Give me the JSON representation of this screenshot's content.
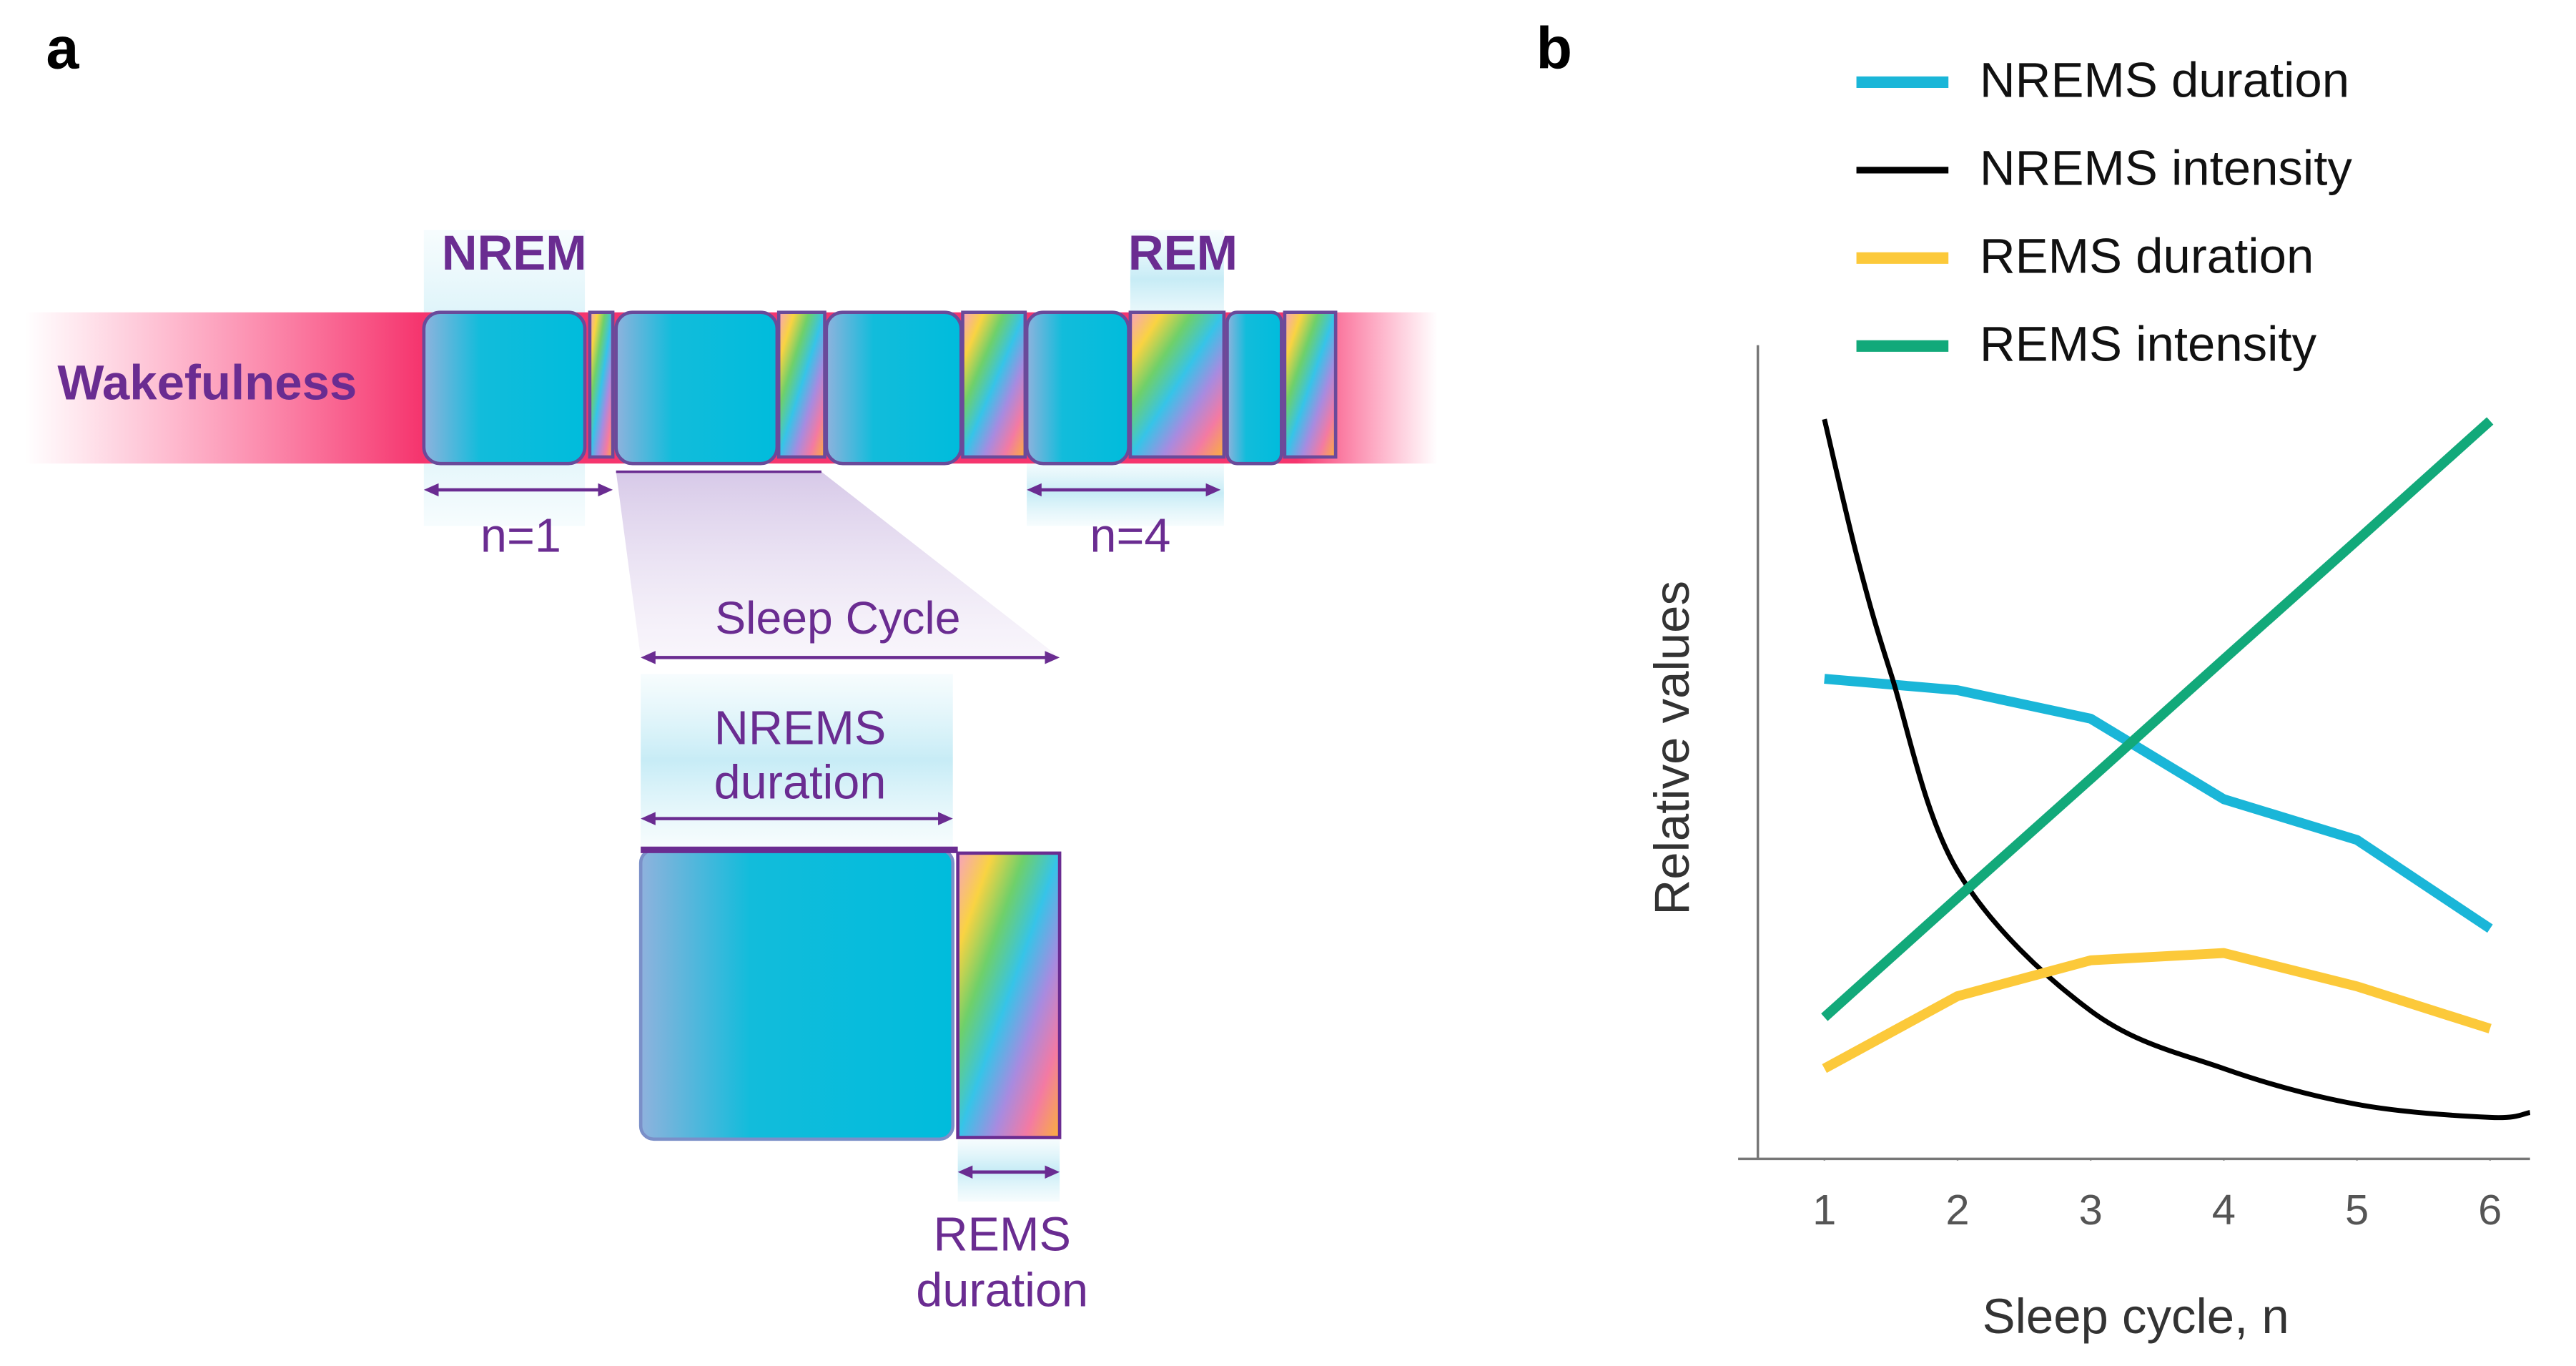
{
  "diagram": {
    "panel_labels": [
      "a",
      "b"
    ],
    "wake": "Wakefulness",
    "nrem": "NREM",
    "rem": "REM",
    "n1": "n=1",
    "n4": "n=4",
    "cycle": "Sleep Cycle",
    "nrems_duration": [
      "NREMS",
      "duration"
    ],
    "rems_duration": [
      "REMS",
      "duration"
    ]
  },
  "chart_data": {
    "type": "line",
    "xlabel": "Sleep cycle, n",
    "ylabel": "Relative values",
    "x": [
      1,
      2,
      3,
      4,
      5,
      6
    ],
    "xlim": [
      0.5,
      6.3
    ],
    "xticks": [
      1,
      2,
      3,
      4,
      5,
      6
    ],
    "ylim": [
      0,
      100
    ],
    "series": [
      {
        "name": "NREMS duration",
        "color": "#1ab6d8",
        "values": [
          59,
          57.6,
          54.1,
          44.2,
          39.2,
          28.3
        ]
      },
      {
        "name": "NREMS intensity",
        "color": "#000000",
        "smooth": true,
        "x": [
          1,
          1.25,
          1.5,
          2,
          3,
          4,
          5,
          6,
          6.3
        ],
        "values": [
          90.9,
          73.7,
          59.6,
          35.4,
          18.2,
          11.1,
          6.7,
          5.1,
          5.7
        ]
      },
      {
        "name": "REMS duration",
        "color": "#fcc93a",
        "values": [
          11.1,
          20,
          24.4,
          25.3,
          21.2,
          16
        ]
      },
      {
        "name": "REMS intensity",
        "color": "#12a97a",
        "values": [
          17.4,
          32.1,
          46.7,
          61.4,
          76.0,
          90.7
        ]
      }
    ]
  }
}
